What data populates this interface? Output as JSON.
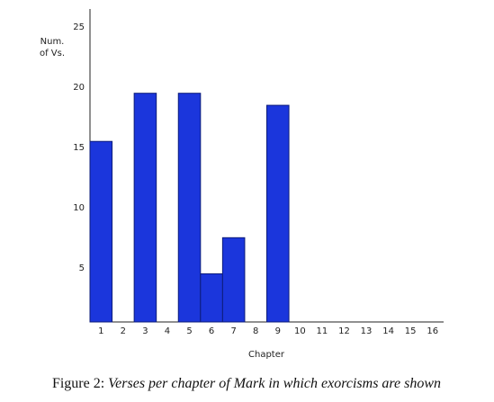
{
  "chart_data": {
    "type": "bar",
    "ylabel": [
      "Num.",
      "of Vs."
    ],
    "xlabel": "Chapter",
    "caption": {
      "label": "Figure 2:",
      "text": "Verses per chapter of Mark in which exorcisms are shown"
    },
    "categories": [
      "1",
      "2",
      "3",
      "4",
      "5",
      "6",
      "7",
      "8",
      "9",
      "10",
      "11",
      "12",
      "13",
      "14",
      "15",
      "16"
    ],
    "values": [
      15.5,
      null,
      19.5,
      null,
      19.5,
      4.5,
      7.5,
      null,
      18.5,
      null,
      null,
      null,
      null,
      null,
      null,
      null
    ],
    "color": "#1b36dc",
    "ylim": [
      0.5,
      26.5
    ],
    "yticks": [
      5,
      10,
      15,
      20,
      25
    ],
    "grid": false
  }
}
